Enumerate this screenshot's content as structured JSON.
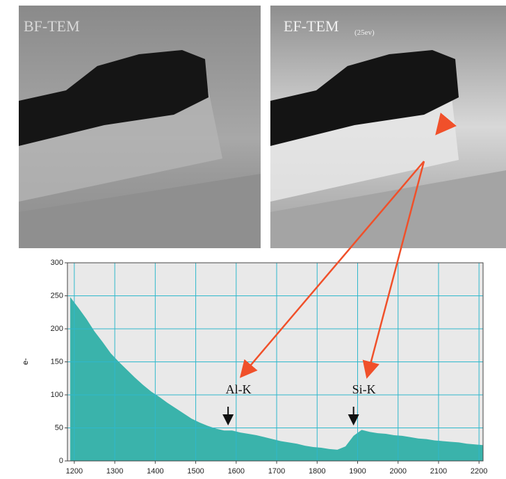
{
  "panels": [
    {
      "label": "BF-TEM"
    },
    {
      "label": "EF-TEM",
      "sublabel": "(25ev)"
    }
  ],
  "chart_data": {
    "type": "area",
    "y_label": "e-",
    "color": "#3ab3ab",
    "grid": true,
    "x": [
      1190,
      1210,
      1230,
      1250,
      1270,
      1290,
      1310,
      1330,
      1350,
      1370,
      1390,
      1410,
      1430,
      1450,
      1470,
      1490,
      1510,
      1530,
      1550,
      1570,
      1590,
      1610,
      1630,
      1650,
      1670,
      1690,
      1710,
      1730,
      1750,
      1770,
      1790,
      1810,
      1830,
      1850,
      1870,
      1890,
      1910,
      1930,
      1950,
      1970,
      1990,
      2010,
      2030,
      2050,
      2070,
      2090,
      2110,
      2130,
      2150,
      2170,
      2190,
      2210
    ],
    "values": [
      248,
      232,
      215,
      196,
      180,
      163,
      150,
      138,
      126,
      115,
      105,
      97,
      88,
      80,
      72,
      64,
      58,
      53,
      49,
      46,
      46,
      43,
      41,
      39,
      36,
      33,
      30,
      28,
      26,
      23,
      21,
      20,
      18,
      17,
      22,
      38,
      47,
      44,
      42,
      41,
      39,
      38,
      36,
      34,
      33,
      31,
      30,
      29,
      28,
      26,
      25,
      24
    ],
    "xlim": [
      1183,
      2210
    ],
    "ylim": [
      0,
      300
    ],
    "xticks": [
      1200,
      1300,
      1400,
      1500,
      1600,
      1700,
      1800,
      1900,
      2000,
      2100,
      2200
    ],
    "yticks": [
      0,
      50,
      100,
      150,
      200,
      250,
      300
    ],
    "annotations": [
      {
        "text": "Al-K",
        "x": 1580
      },
      {
        "text": "Si-K",
        "x": 1890
      }
    ]
  }
}
